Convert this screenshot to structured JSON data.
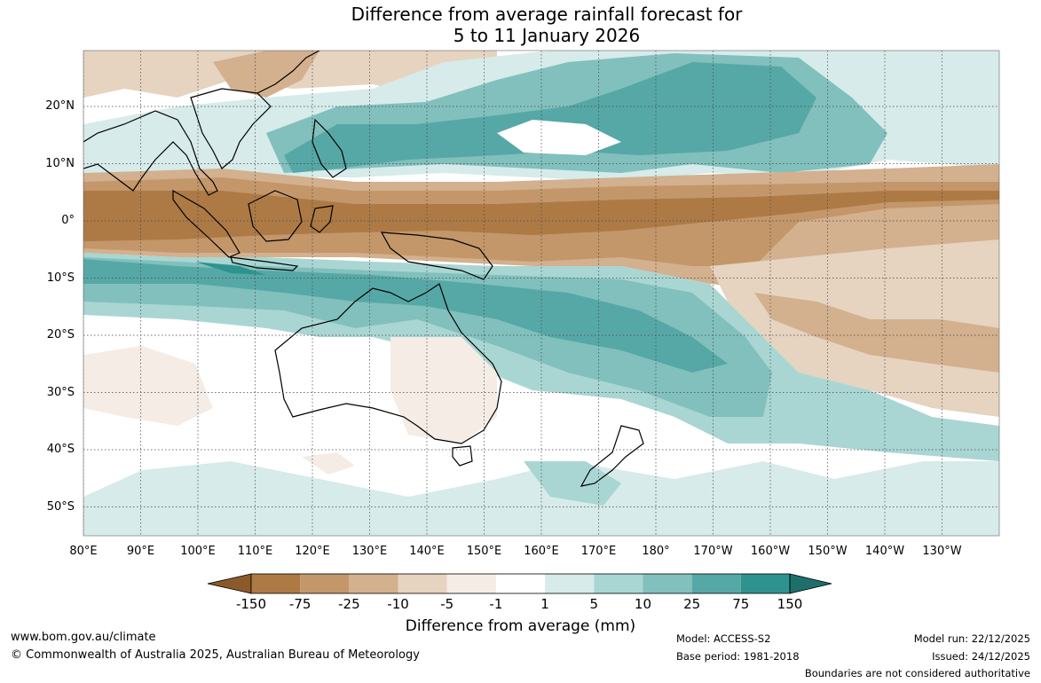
{
  "title": {
    "line1": "Difference from average rainfall forecast for",
    "line2": "5 to 11 January 2026"
  },
  "axes": {
    "lat_labels": [
      "20°N",
      "10°N",
      "0°",
      "10°S",
      "20°S",
      "30°S",
      "40°S",
      "50°S"
    ],
    "lat_values": [
      20,
      10,
      0,
      -10,
      -20,
      -30,
      -40,
      -50
    ],
    "lon_labels": [
      "80°E",
      "90°E",
      "100°E",
      "110°E",
      "120°E",
      "130°E",
      "140°E",
      "150°E",
      "160°E",
      "170°E",
      "180°",
      "170°W",
      "160°W",
      "150°W",
      "140°W",
      "130°W"
    ],
    "lon_values": [
      80,
      90,
      100,
      110,
      120,
      130,
      140,
      150,
      160,
      170,
      180,
      190,
      200,
      210,
      220,
      230
    ]
  },
  "colorbar": {
    "title": "Difference from average (mm)",
    "labels": [
      "-150",
      "-75",
      "-25",
      "-10",
      "-5",
      "-1",
      "1",
      "5",
      "10",
      "25",
      "75",
      "150"
    ],
    "colors": [
      "#8b5a2b",
      "#ad7a45",
      "#c3976a",
      "#d3b08e",
      "#e6d3c0",
      "#f4ece5",
      "#ffffff",
      "#d6ebea",
      "#a9d6d3",
      "#81c0bd",
      "#56a8a6",
      "#2e938f",
      "#1e6f6b"
    ]
  },
  "colors": {
    "land_outline": "#000000",
    "grid": "#444444",
    "ocean_neutral": "#ffffff"
  },
  "footer": {
    "website": "www.bom.gov.au/climate",
    "copyright": "© Commonwealth of Australia 2025, Australian Bureau of Meteorology",
    "model": "Model: ACCESS-S2",
    "base_period": "Base period: 1981-2018",
    "model_run": "Model run: 22/12/2025",
    "issued": "Issued: 24/12/2025",
    "disclaimer": "Boundaries are not considered authoritative"
  }
}
